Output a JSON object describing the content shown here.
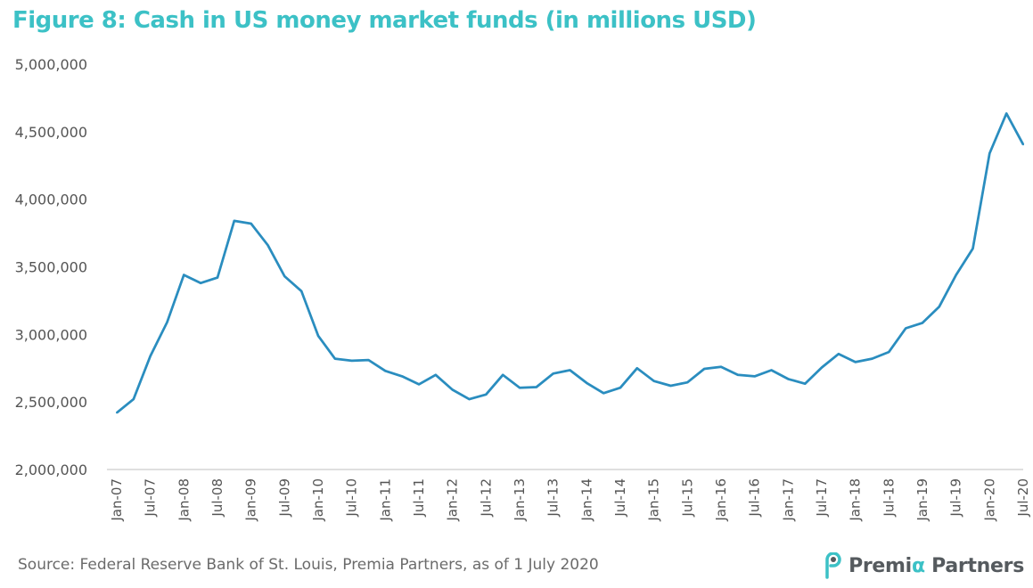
{
  "title": "Figure 8: Cash in US money market funds (in millions USD)",
  "source": "Source: Federal Reserve Bank of St. Louis, Premia Partners, as of 1 July 2020",
  "brand": {
    "name_prefix": "Premi",
    "name_alpha": "α",
    "name_suffix": " Partners",
    "logo_icon": "premia-p-logo-icon"
  },
  "colors": {
    "title": "#3cc1c6",
    "line": "#2a8dbf",
    "axis": "#bfbfbf",
    "brand_text": "#555a5e",
    "brand_alpha": "#3cc1c6"
  },
  "chart_data": {
    "type": "line",
    "title": "Figure 8: Cash in US money market funds (in millions USD)",
    "xlabel": "",
    "ylabel": "",
    "ylim": [
      2000000,
      5000000
    ],
    "yticks": [
      2000000,
      2500000,
      3000000,
      3500000,
      4000000,
      4500000,
      5000000
    ],
    "ytick_labels": [
      "2,000,000",
      "2,500,000",
      "3,000,000",
      "3,500,000",
      "4,000,000",
      "4,500,000",
      "5,000,000"
    ],
    "grid": false,
    "xtick_labels": [
      "Jan-07",
      "Jul-07",
      "Jan-08",
      "Jul-08",
      "Jan-09",
      "Jul-09",
      "Jan-10",
      "Jul-10",
      "Jan-11",
      "Jul-11",
      "Jan-12",
      "Jul-12",
      "Jan-13",
      "Jul-13",
      "Jan-14",
      "Jul-14",
      "Jan-15",
      "Jul-15",
      "Jan-16",
      "Jul-16",
      "Jan-17",
      "Jul-17",
      "Jan-18",
      "Jul-18",
      "Jan-19",
      "Jul-19",
      "Jan-20",
      "Jul-20"
    ],
    "x": [
      "Jan-07",
      "Apr-07",
      "Jul-07",
      "Oct-07",
      "Jan-08",
      "Apr-08",
      "Jul-08",
      "Oct-08",
      "Jan-09",
      "Apr-09",
      "Jul-09",
      "Oct-09",
      "Jan-10",
      "Apr-10",
      "Jul-10",
      "Oct-10",
      "Jan-11",
      "Apr-11",
      "Jul-11",
      "Oct-11",
      "Jan-12",
      "Apr-12",
      "Jul-12",
      "Oct-12",
      "Jan-13",
      "Apr-13",
      "Jul-13",
      "Oct-13",
      "Jan-14",
      "Apr-14",
      "Jul-14",
      "Oct-14",
      "Jan-15",
      "Apr-15",
      "Jul-15",
      "Oct-15",
      "Jan-16",
      "Apr-16",
      "Jul-16",
      "Oct-16",
      "Jan-17",
      "Apr-17",
      "Jul-17",
      "Oct-17",
      "Jan-18",
      "Apr-18",
      "Jul-18",
      "Oct-18",
      "Jan-19",
      "Apr-19",
      "Jul-19",
      "Oct-19",
      "Jan-20",
      "Apr-20",
      "Jul-20"
    ],
    "values": [
      2420000,
      2520000,
      2840000,
      3090000,
      3440000,
      3380000,
      3420000,
      3840000,
      3820000,
      3660000,
      3430000,
      3320000,
      2990000,
      2820000,
      2805000,
      2810000,
      2730000,
      2690000,
      2630000,
      2700000,
      2590000,
      2520000,
      2555000,
      2700000,
      2605000,
      2610000,
      2710000,
      2735000,
      2640000,
      2565000,
      2605000,
      2750000,
      2655000,
      2620000,
      2645000,
      2745000,
      2760000,
      2700000,
      2690000,
      2735000,
      2670000,
      2635000,
      2755000,
      2855000,
      2795000,
      2820000,
      2870000,
      3045000,
      3085000,
      3205000,
      3440000,
      3635000,
      4340000,
      4635000,
      4405000
    ],
    "series": [
      {
        "values_ref": "values"
      }
    ]
  }
}
